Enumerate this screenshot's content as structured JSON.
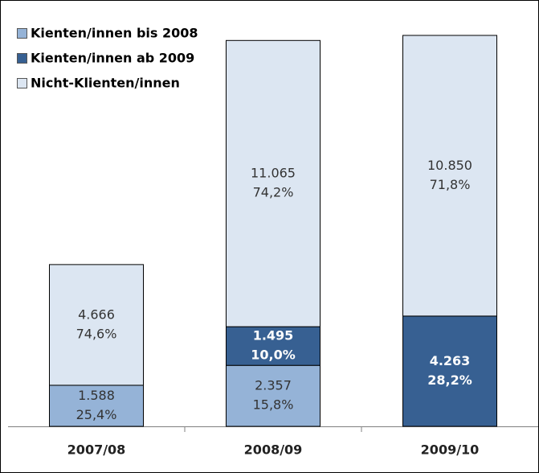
{
  "chart_data": {
    "type": "stacked_bar",
    "categories": [
      "2007/08",
      "2008/09",
      "2009/10"
    ],
    "series": [
      {
        "name": "Kienten/innen bis 2008",
        "color": "#95b3d7",
        "values": [
          1588,
          2357,
          null
        ],
        "value_labels": [
          "1.588",
          "2.357",
          null
        ],
        "shares": [
          25.4,
          15.8,
          null
        ],
        "share_labels": [
          "25,4%",
          "15,8%",
          null
        ]
      },
      {
        "name": "Kienten/innen ab 2009",
        "color": "#376092",
        "values": [
          null,
          1495,
          4263
        ],
        "value_labels": [
          null,
          "1.495",
          "4.263"
        ],
        "shares": [
          null,
          10.0,
          28.2
        ],
        "share_labels": [
          null,
          "10,0%",
          "28,2%"
        ]
      },
      {
        "name": "Nicht-Klienten/innen",
        "color": "#dce6f2",
        "values": [
          4666,
          11065,
          10850
        ],
        "value_labels": [
          "4.666",
          "11.065",
          "10.850"
        ],
        "shares": [
          74.6,
          74.2,
          71.8
        ],
        "share_labels": [
          "74,6%",
          "74,2%",
          "71,8%"
        ]
      }
    ],
    "legend": "top-left"
  }
}
